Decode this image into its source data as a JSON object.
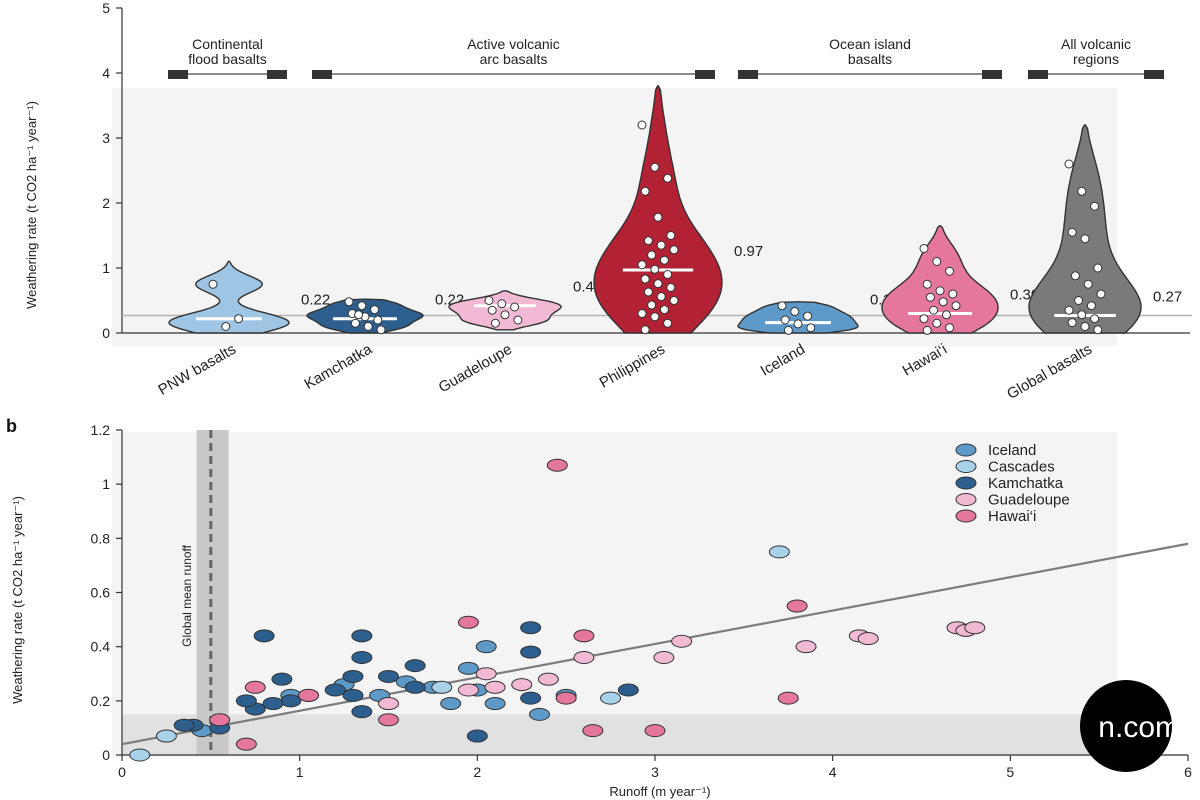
{
  "panels": {
    "b": "b"
  },
  "colors": {
    "pnw": "#9ec5e3",
    "kamchatka": "#2d5f8e",
    "guadeloupe": "#f1b9d3",
    "philippines": "#b32134",
    "iceland": "#5d9ac9",
    "hawaii": "#e5779f",
    "global": "#7a7a7a",
    "cascades": "#a8d1ea",
    "fit_line": "#7d7d7d"
  },
  "watermark": {
    "text": "n.com"
  },
  "chart_data": [
    {
      "type": "violin",
      "ylabel": "Weathering rate (t CO2 ha⁻¹ year⁻¹)",
      "ylim": [
        0,
        5
      ],
      "yticks": [
        0,
        1,
        2,
        3,
        4,
        5
      ],
      "reference_line": 0.27,
      "groups": [
        {
          "label": "Continental flood basalts",
          "lines": [
            "Continental",
            "flood basalts"
          ],
          "from": 0,
          "to": 0
        },
        {
          "label": "Active volcanic arc basalts",
          "lines": [
            "Active volcanic",
            "arc basalts"
          ],
          "from": 1,
          "to": 3
        },
        {
          "label": "Ocean island basalts",
          "lines": [
            "Ocean island",
            "basalts"
          ],
          "from": 4,
          "to": 5
        },
        {
          "label": "All volcanic regions",
          "lines": [
            "All volcanic",
            "regions"
          ],
          "from": 6,
          "to": 6
        }
      ],
      "categories": [
        {
          "name": "PNW basalts",
          "median": 0.22,
          "median_label": "0.22",
          "color_key": "pnw",
          "ymin": 0.0,
          "ymax": 1.1,
          "points": [
            0.75,
            0.1,
            0.22
          ]
        },
        {
          "name": "Kamchatka",
          "median": 0.22,
          "median_label": "0.22",
          "color_key": "kamchatka",
          "ymin": 0.0,
          "ymax": 0.52,
          "points": [
            0.48,
            0.42,
            0.36,
            0.3,
            0.25,
            0.2,
            0.15,
            0.1,
            0.05,
            0.28
          ]
        },
        {
          "name": "Guadeloupe",
          "median": 0.42,
          "median_label": "0.42",
          "color_key": "guadeloupe",
          "ymin": 0.05,
          "ymax": 0.65,
          "points": [
            0.5,
            0.45,
            0.4,
            0.35,
            0.28,
            0.2,
            0.15
          ]
        },
        {
          "name": "Philippines",
          "median": 0.97,
          "median_label": "0.97",
          "color_key": "philippines",
          "ymin": 0.0,
          "ymax": 3.8,
          "points": [
            3.2,
            2.55,
            2.38,
            2.18,
            1.78,
            1.5,
            1.42,
            1.35,
            1.28,
            1.2,
            1.12,
            1.05,
            0.98,
            0.9,
            0.83,
            0.76,
            0.7,
            0.63,
            0.56,
            0.5,
            0.43,
            0.36,
            0.3,
            0.25,
            0.15,
            0.05
          ]
        },
        {
          "name": "Iceland",
          "median": 0.16,
          "median_label": "0.16",
          "color_key": "iceland",
          "ymin": 0.0,
          "ymax": 0.48,
          "points": [
            0.42,
            0.33,
            0.26,
            0.2,
            0.14,
            0.08,
            0.04
          ]
        },
        {
          "name": "Hawai‘i",
          "median": 0.3,
          "median_label": "0.30",
          "color_key": "hawaii",
          "ymin": 0.0,
          "ymax": 1.65,
          "points": [
            1.3,
            1.1,
            0.95,
            0.75,
            0.65,
            0.6,
            0.55,
            0.48,
            0.42,
            0.35,
            0.28,
            0.22,
            0.15,
            0.08,
            0.04
          ]
        },
        {
          "name": "Global basalts",
          "median": 0.27,
          "median_label": "0.27",
          "color_key": "global",
          "ymin": 0.0,
          "ymax": 3.2,
          "points": [
            2.6,
            2.18,
            1.95,
            1.55,
            1.45,
            1.0,
            0.88,
            0.75,
            0.6,
            0.5,
            0.42,
            0.35,
            0.28,
            0.22,
            0.16,
            0.1,
            0.05
          ]
        }
      ]
    },
    {
      "type": "scatter",
      "xlabel": "Runoff (m year⁻¹)",
      "ylabel": "Weathering rate (t CO2 ha⁻¹ year⁻¹)",
      "xlim": [
        0,
        6
      ],
      "ylim": [
        0,
        1.2
      ],
      "xticks": [
        0,
        1,
        2,
        3,
        4,
        5,
        6
      ],
      "yticks": [
        0,
        0.2,
        0.4,
        0.6,
        0.8,
        1.0,
        1.2
      ],
      "vline": {
        "x": 0.5,
        "band": [
          0.42,
          0.6
        ],
        "label": "Global mean runoff"
      },
      "shaded_band_y": [
        0,
        0.15
      ],
      "fit_line": {
        "x": [
          0,
          6
        ],
        "y": [
          0.04,
          0.78
        ]
      },
      "legend": {
        "placement": "top-right"
      },
      "series": [
        {
          "name": "Iceland",
          "color_key": "iceland",
          "points": [
            [
              0.95,
              0.22
            ],
            [
              1.05,
              0.22
            ],
            [
              1.25,
              0.26
            ],
            [
              1.45,
              0.22
            ],
            [
              1.6,
              0.27
            ],
            [
              1.75,
              0.25
            ],
            [
              1.95,
              0.32
            ],
            [
              2.0,
              0.24
            ],
            [
              2.1,
              0.19
            ],
            [
              2.35,
              0.15
            ],
            [
              2.5,
              0.22
            ],
            [
              1.85,
              0.19
            ],
            [
              2.05,
              0.4
            ],
            [
              0.45,
              0.09
            ]
          ]
        },
        {
          "name": "Cascades",
          "color_key": "cascades",
          "points": [
            [
              3.7,
              0.75
            ],
            [
              2.75,
              0.21
            ],
            [
              1.8,
              0.25
            ],
            [
              0.1,
              0.0
            ],
            [
              0.25,
              0.07
            ]
          ]
        },
        {
          "name": "Kamchatka",
          "color_key": "kamchatka",
          "points": [
            [
              0.8,
              0.44
            ],
            [
              0.9,
              0.28
            ],
            [
              0.95,
              0.2
            ],
            [
              0.75,
              0.17
            ],
            [
              0.7,
              0.2
            ],
            [
              0.85,
              0.19
            ],
            [
              1.2,
              0.24
            ],
            [
              1.3,
              0.29
            ],
            [
              1.35,
              0.44
            ],
            [
              1.35,
              0.36
            ],
            [
              1.3,
              0.22
            ],
            [
              1.35,
              0.16
            ],
            [
              1.5,
              0.29
            ],
            [
              1.65,
              0.33
            ],
            [
              1.65,
              0.25
            ],
            [
              2.0,
              0.07
            ],
            [
              2.3,
              0.47
            ],
            [
              2.3,
              0.38
            ],
            [
              2.3,
              0.21
            ],
            [
              2.85,
              0.24
            ],
            [
              0.4,
              0.11
            ],
            [
              0.35,
              0.11
            ],
            [
              0.55,
              0.1
            ]
          ]
        },
        {
          "name": "Guadeloupe",
          "color_key": "guadeloupe",
          "points": [
            [
              1.5,
              0.19
            ],
            [
              1.95,
              0.24
            ],
            [
              2.05,
              0.3
            ],
            [
              2.1,
              0.25
            ],
            [
              2.25,
              0.26
            ],
            [
              2.4,
              0.28
            ],
            [
              2.6,
              0.36
            ],
            [
              3.05,
              0.36
            ],
            [
              3.15,
              0.42
            ],
            [
              3.85,
              0.4
            ],
            [
              4.15,
              0.44
            ],
            [
              4.2,
              0.43
            ],
            [
              4.7,
              0.47
            ],
            [
              4.75,
              0.46
            ],
            [
              4.8,
              0.47
            ]
          ]
        },
        {
          "name": "Hawai‘i",
          "color_key": "hawaii",
          "points": [
            [
              2.45,
              1.07
            ],
            [
              1.95,
              0.49
            ],
            [
              2.6,
              0.44
            ],
            [
              0.75,
              0.25
            ],
            [
              0.7,
              0.04
            ],
            [
              1.05,
              0.22
            ],
            [
              1.5,
              0.13
            ],
            [
              2.5,
              0.21
            ],
            [
              2.65,
              0.09
            ],
            [
              3.0,
              0.09
            ],
            [
              3.75,
              0.21
            ],
            [
              3.8,
              0.55
            ],
            [
              0.55,
              0.13
            ]
          ]
        }
      ]
    }
  ]
}
